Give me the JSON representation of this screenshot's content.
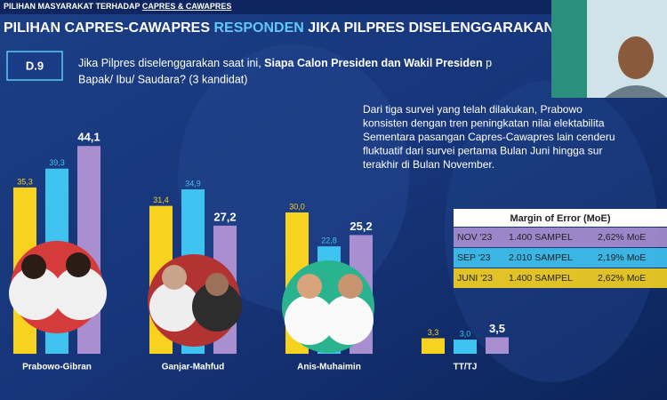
{
  "header": {
    "kicker": "PILIHAN MASYARAKAT TERHADAP",
    "kicker_highlight": "CAPRES & CAWAPRES",
    "title_part1": "PILIHAN CAPRES-CAWAPRES",
    "title_part2": "RESPONDEN",
    "title_part3": "JIKA PILPRES DISELENGGARAKAN"
  },
  "question": {
    "code": "D.9",
    "text_plain": "Jika Pilpres diselenggarakan saat ini,",
    "text_bold": "Siapa Calon Presiden dan Wakil Presiden",
    "text_tail": "p",
    "line2": "Bapak/ Ibu/ Saudara? (3 kandidat)"
  },
  "description": [
    "Dari tiga survei yang telah dilakukan, Prabowo",
    "konsisten dengan tren peningkatan nilai elektabilita",
    "Sementara pasangan Capres-Cawapres lain cenderu",
    "fluktuatif dari survei pertama Bulan Juni hingga sur",
    "terakhir di Bulan November."
  ],
  "moe_table": {
    "title": "Margin of Error (MoE)",
    "rows": [
      [
        "1.400 SAMPEL",
        "2,62% MoE"
      ],
      [
        "2.010 SAMPEL",
        "2,19% MoE"
      ],
      [
        "1.400 SAMPEL",
        "2,62% MoE"
      ]
    ]
  },
  "chart_data": {
    "type": "bar",
    "categories": [
      "Prabowo-Gibran",
      "Ganjar-Mahfud",
      "Anis-Muhaimin",
      "TT/TJ"
    ],
    "series": [
      {
        "name": "JUNI '23",
        "color": "#f7d21e",
        "values": [
          35.3,
          31.4,
          30.0,
          3.3
        ],
        "value_labels": [
          "35,3",
          "31,4",
          "30,0",
          "3,3"
        ]
      },
      {
        "name": "SEP '23",
        "color": "#3fc3f0",
        "values": [
          39.3,
          34.9,
          22.8,
          3.0
        ],
        "value_labels": [
          "39,3",
          "34,9",
          "22,8",
          "3,0"
        ]
      },
      {
        "name": "NOV '23",
        "color": "#a98fd0",
        "values": [
          44.1,
          27.2,
          25.2,
          3.5
        ],
        "value_labels": [
          "44,1",
          "27,2",
          "25,2",
          "3,5"
        ]
      }
    ]
  }
}
